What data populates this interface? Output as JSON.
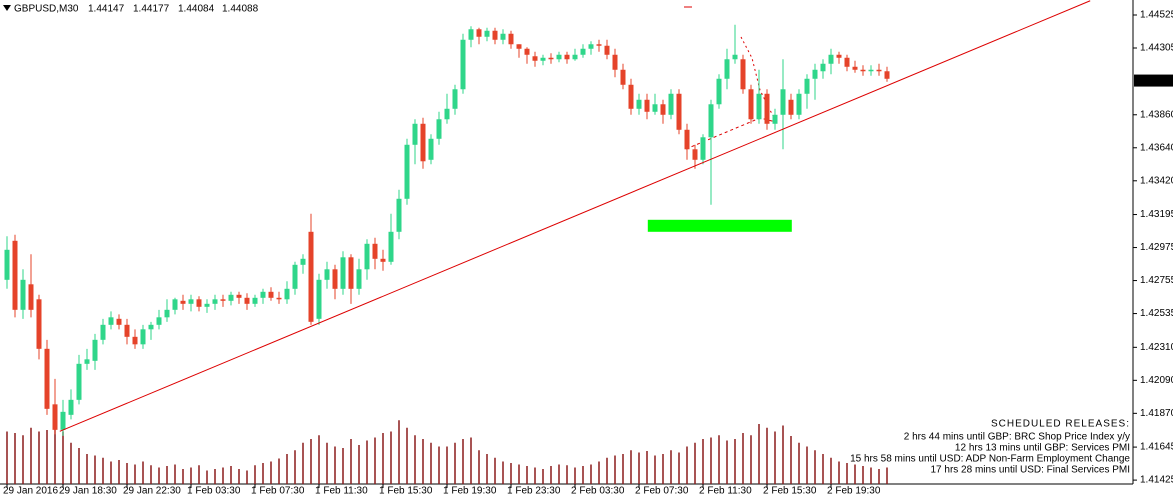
{
  "chart_data": {
    "type": "candlestick",
    "header": {
      "symbol": "GBPUSD,M30",
      "ohlc": [
        1.44147,
        1.44177,
        1.44084,
        1.44088
      ]
    },
    "categories": [
      "29 Jan 2016",
      null,
      null,
      null,
      null,
      null,
      null,
      "29 Jan 18:30",
      null,
      null,
      null,
      null,
      null,
      null,
      null,
      "29 Jan 22:30",
      null,
      null,
      null,
      null,
      null,
      null,
      null,
      "1 Feb 03:30",
      null,
      null,
      null,
      null,
      null,
      null,
      null,
      "1 Feb 07:30",
      null,
      null,
      null,
      null,
      null,
      null,
      null,
      "1 Feb 11:30",
      null,
      null,
      null,
      null,
      null,
      null,
      null,
      "1 Feb 15:30",
      null,
      null,
      null,
      null,
      null,
      null,
      null,
      "1 Feb 19:30",
      null,
      null,
      null,
      null,
      null,
      null,
      null,
      "1 Feb 23:30",
      null,
      null,
      null,
      null,
      null,
      null,
      null,
      "2 Feb 03:30",
      null,
      null,
      null,
      null,
      null,
      null,
      null,
      "2 Feb 07:30",
      null,
      null,
      null,
      null,
      null,
      null,
      null,
      "2 Feb 11:30",
      null,
      null,
      null,
      null,
      null,
      null,
      null,
      "2 Feb 15:30",
      null,
      null,
      null,
      null,
      null,
      null,
      null,
      "2 Feb 19:30",
      null,
      null,
      null,
      null,
      null,
      null,
      null
    ],
    "open": [
      1.4276,
      1.4302,
      1.4256,
      1.4273,
      1.4263,
      1.423,
      1.4193,
      1.4176,
      1.4186,
      1.4196,
      1.422,
      1.4222,
      1.4236,
      1.4246,
      1.425,
      1.4246,
      1.4238,
      1.4233,
      1.4243,
      1.4246,
      1.4251,
      1.4256,
      1.4262,
      1.426,
      1.4263,
      1.4258,
      1.426,
      1.4263,
      1.4262,
      1.4266,
      1.4264,
      1.426,
      1.4264,
      1.4268,
      1.4264,
      1.4263,
      1.427,
      1.4286,
      1.4308,
      1.425,
      1.4276,
      1.4283,
      1.427,
      1.4291,
      1.427,
      1.4283,
      1.43,
      1.429,
      1.4288,
      1.4308,
      1.433,
      1.4366,
      1.438,
      1.4356,
      1.437,
      1.4383,
      1.439,
      1.4403,
      1.4436,
      1.4443,
      1.4438,
      1.4442,
      1.4436,
      1.444,
      1.4433,
      1.443,
      1.4425,
      1.4422,
      1.4424,
      1.4423,
      1.4426,
      1.4423,
      1.4426,
      1.443,
      1.4433,
      1.4432,
      1.4426,
      1.4416,
      1.4406,
      1.439,
      1.4396,
      1.4388,
      1.4393,
      1.4386,
      1.44,
      1.4376,
      1.4363,
      1.4356,
      1.4371,
      1.4393,
      1.441,
      1.4423,
      1.4423,
      1.4403,
      1.4383,
      1.44,
      1.438,
      1.4386,
      1.4396,
      1.4386,
      1.44,
      1.441,
      1.4415,
      1.442,
      1.4426,
      1.4424,
      1.4418,
      1.4416,
      1.4415,
      1.4416,
      1.4415
    ],
    "high": [
      1.4305,
      1.4306,
      1.4283,
      1.4293,
      1.4266,
      1.4236,
      1.421,
      1.4196,
      1.4203,
      1.4226,
      1.423,
      1.424,
      1.425,
      1.4255,
      1.4253,
      1.425,
      1.4243,
      1.4246,
      1.4248,
      1.4256,
      1.4263,
      1.4264,
      1.4266,
      1.4266,
      1.4265,
      1.4263,
      1.4266,
      1.4266,
      1.4268,
      1.4268,
      1.4267,
      1.4266,
      1.427,
      1.4271,
      1.4268,
      1.4275,
      1.4288,
      1.4293,
      1.432,
      1.428,
      1.4288,
      1.4286,
      1.4295,
      1.4293,
      1.429,
      1.4303,
      1.4304,
      1.4296,
      1.432,
      1.4336,
      1.437,
      1.4383,
      1.4384,
      1.4373,
      1.4388,
      1.44,
      1.4406,
      1.444,
      1.4445,
      1.4444,
      1.4444,
      1.4444,
      1.4443,
      1.4442,
      1.4433,
      1.4431,
      1.4428,
      1.4426,
      1.4427,
      1.4428,
      1.4428,
      1.443,
      1.4433,
      1.4435,
      1.4436,
      1.4436,
      1.443,
      1.442,
      1.441,
      1.44,
      1.44,
      1.44,
      1.4396,
      1.4403,
      1.4403,
      1.438,
      1.4366,
      1.4373,
      1.4396,
      1.4413,
      1.443,
      1.4446,
      1.4426,
      1.4406,
      1.4416,
      1.4403,
      1.439,
      1.4423,
      1.44,
      1.4403,
      1.4413,
      1.442,
      1.4423,
      1.443,
      1.4428,
      1.4426,
      1.4422,
      1.4419,
      1.4419,
      1.442,
      1.4418
    ],
    "low": [
      1.427,
      1.4251,
      1.425,
      1.4251,
      1.4223,
      1.4186,
      1.4173,
      1.4172,
      1.4183,
      1.4193,
      1.4216,
      1.4216,
      1.4233,
      1.4243,
      1.4243,
      1.4233,
      1.423,
      1.423,
      1.4236,
      1.4243,
      1.4248,
      1.4253,
      1.4256,
      1.4255,
      1.4255,
      1.4254,
      1.4256,
      1.4258,
      1.4259,
      1.426,
      1.4256,
      1.4258,
      1.426,
      1.4262,
      1.426,
      1.426,
      1.4266,
      1.428,
      1.4246,
      1.4246,
      1.427,
      1.4263,
      1.4266,
      1.426,
      1.4266,
      1.4276,
      1.4283,
      1.4282,
      1.4286,
      1.4303,
      1.4326,
      1.4353,
      1.435,
      1.4353,
      1.4366,
      1.438,
      1.4386,
      1.44,
      1.4431,
      1.4433,
      1.4435,
      1.4433,
      1.4433,
      1.443,
      1.4424,
      1.442,
      1.4418,
      1.4419,
      1.442,
      1.4421,
      1.442,
      1.4422,
      1.4424,
      1.4426,
      1.4428,
      1.4423,
      1.4411,
      1.4403,
      1.4386,
      1.4386,
      1.4383,
      1.4386,
      1.438,
      1.4383,
      1.4373,
      1.4356,
      1.435,
      1.4353,
      1.4326,
      1.439,
      1.4403,
      1.442,
      1.44,
      1.438,
      1.438,
      1.4376,
      1.4376,
      1.4363,
      1.4383,
      1.4383,
      1.439,
      1.4396,
      1.441,
      1.4413,
      1.442,
      1.4415,
      1.4414,
      1.4412,
      1.4412,
      1.4412,
      1.4408
    ],
    "close": [
      1.4296,
      1.4256,
      1.4276,
      1.4256,
      1.423,
      1.419,
      1.4176,
      1.4188,
      1.4196,
      1.422,
      1.4223,
      1.4236,
      1.4246,
      1.4251,
      1.4246,
      1.4238,
      1.4233,
      1.4243,
      1.4246,
      1.4251,
      1.4256,
      1.4263,
      1.426,
      1.4263,
      1.4258,
      1.426,
      1.4263,
      1.4262,
      1.4266,
      1.4264,
      1.426,
      1.4264,
      1.4268,
      1.4264,
      1.4263,
      1.427,
      1.4286,
      1.429,
      1.4248,
      1.4276,
      1.4283,
      1.427,
      1.4291,
      1.427,
      1.4283,
      1.43,
      1.429,
      1.4288,
      1.4308,
      1.433,
      1.4366,
      1.438,
      1.4355,
      1.437,
      1.4383,
      1.439,
      1.4403,
      1.4436,
      1.4443,
      1.4438,
      1.4442,
      1.4436,
      1.444,
      1.4433,
      1.443,
      1.4426,
      1.4422,
      1.4424,
      1.4423,
      1.4426,
      1.4423,
      1.4426,
      1.443,
      1.4433,
      1.4432,
      1.4426,
      1.4416,
      1.4406,
      1.439,
      1.4396,
      1.4388,
      1.4393,
      1.4386,
      1.44,
      1.4376,
      1.4363,
      1.4356,
      1.4371,
      1.4393,
      1.441,
      1.4423,
      1.4426,
      1.4403,
      1.4383,
      1.44,
      1.438,
      1.4386,
      1.4403,
      1.4386,
      1.44,
      1.441,
      1.4416,
      1.442,
      1.4426,
      1.4424,
      1.4418,
      1.4416,
      1.4415,
      1.4416,
      1.4415,
      1.441
    ],
    "volumes": [
      70,
      68,
      65,
      75,
      70,
      72,
      78,
      70,
      55,
      48,
      40,
      38,
      35,
      30,
      32,
      28,
      26,
      30,
      25,
      22,
      24,
      26,
      20,
      22,
      25,
      18,
      20,
      22,
      24,
      20,
      18,
      25,
      28,
      30,
      34,
      40,
      45,
      55,
      60,
      65,
      55,
      50,
      48,
      60,
      52,
      58,
      62,
      68,
      70,
      85,
      75,
      65,
      60,
      55,
      50,
      50,
      55,
      60,
      62,
      45,
      40,
      35,
      30,
      28,
      26,
      24,
      22,
      20,
      24,
      26,
      25,
      22,
      24,
      26,
      30,
      35,
      38,
      40,
      45,
      42,
      44,
      38,
      40,
      45,
      42,
      50,
      55,
      60,
      62,
      65,
      58,
      60,
      68,
      65,
      80,
      75,
      70,
      78,
      64,
      55,
      50,
      45,
      40,
      35,
      30,
      28,
      26,
      24,
      22,
      20,
      22
    ],
    "volume_lim": [
      0,
      100
    ],
    "up_color": "#2fd68a",
    "down_color": "#e5432a",
    "volume_color": "#8b1a1a",
    "ylim": [
      1.41399,
      1.44625
    ],
    "yticks": [
      1.44525,
      1.44305,
      {
        "value": 1.4386,
        "label": "1.43860"
      },
      {
        "value": 1.4364,
        "label": "1.43640"
      },
      {
        "value": 1.4342,
        "label": "1.43420"
      },
      1.43195,
      1.42975,
      1.42755,
      1.42535,
      {
        "value": 1.4231,
        "label": "1.42310"
      },
      {
        "value": 1.4209,
        "label": "1.42090"
      },
      {
        "value": 1.4187,
        "label": "1.41870"
      },
      1.41645,
      1.41425
    ],
    "trendline": {
      "x": [
        6.6,
        135.4
      ],
      "y": [
        1.4175,
        1.4462
      ],
      "color": "#dd0000"
    },
    "zone": {
      "x": [
        80.1,
        98.1
      ],
      "y": [
        1.4308,
        1.4316
      ],
      "color": "#00ff00"
    },
    "releases_title": "SCHEDULED RELEASES:",
    "releases": [
      {
        "text": "2 hrs 44 mins until GBP: BRC Shop Price Index y/y",
        "color": "#1a8a1a"
      },
      {
        "text": "12 hrs 13 mins until GBP: Services PMI",
        "color": "#d01010"
      },
      {
        "text": "15 hrs 58 mins until USD: ADP Non-Farm Employment Change",
        "color": "#d0105a"
      },
      {
        "text": "17 hrs 28 mins until USD: Final Services PMI",
        "color": "#1a8a1a"
      }
    ]
  }
}
